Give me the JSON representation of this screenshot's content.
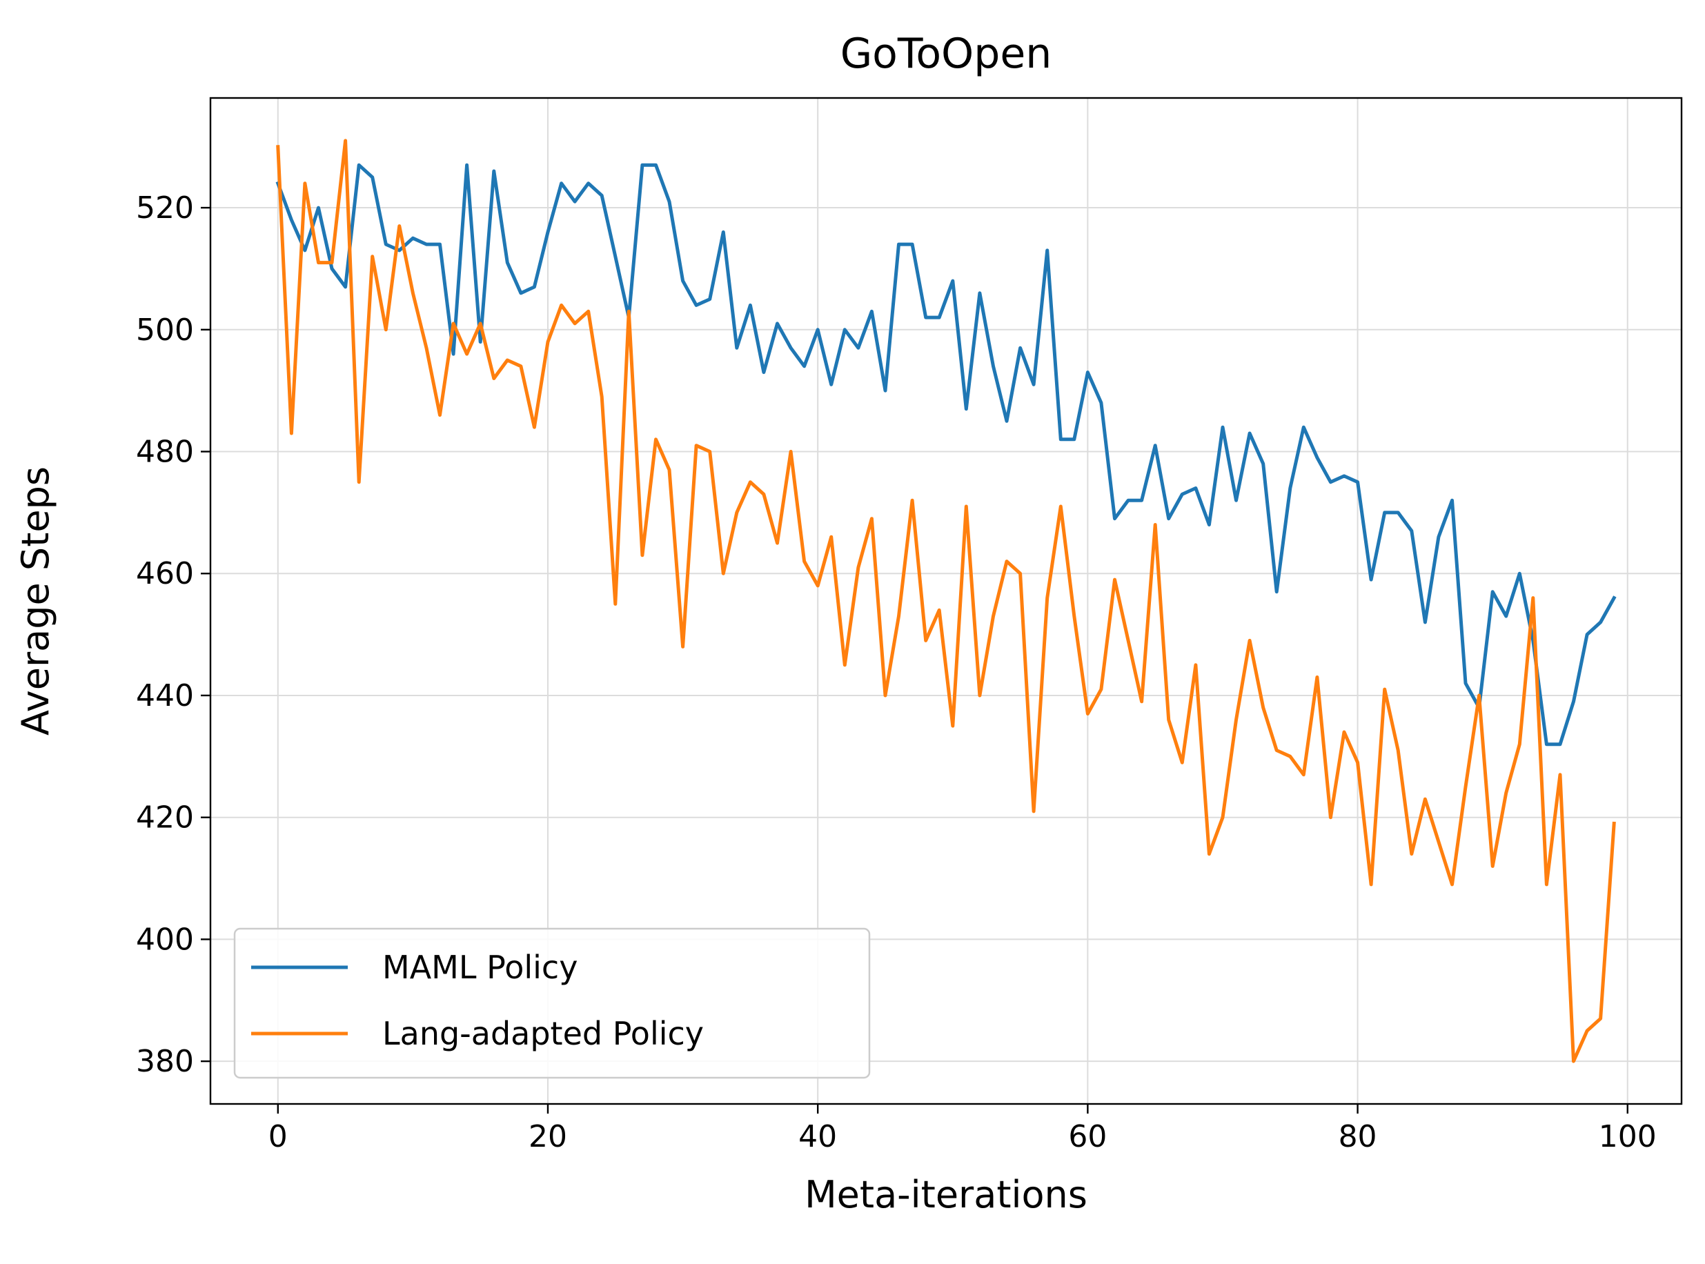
{
  "chart_data": {
    "type": "line",
    "title": "GoToOpen",
    "xlabel": "Meta-iterations",
    "ylabel": "Average Steps",
    "xlim": [
      -5,
      104
    ],
    "ylim": [
      373,
      538
    ],
    "xticks": [
      0,
      20,
      40,
      60,
      80,
      100
    ],
    "yticks": [
      380,
      400,
      420,
      440,
      460,
      480,
      500,
      520
    ],
    "grid": true,
    "legend_position": "lower-left",
    "x": [
      0,
      1,
      2,
      3,
      4,
      5,
      6,
      7,
      8,
      9,
      10,
      11,
      12,
      13,
      14,
      15,
      16,
      17,
      18,
      19,
      20,
      21,
      22,
      23,
      24,
      25,
      26,
      27,
      28,
      29,
      30,
      31,
      32,
      33,
      34,
      35,
      36,
      37,
      38,
      39,
      40,
      41,
      42,
      43,
      44,
      45,
      46,
      47,
      48,
      49,
      50,
      51,
      52,
      53,
      54,
      55,
      56,
      57,
      58,
      59,
      60,
      61,
      62,
      63,
      64,
      65,
      66,
      67,
      68,
      69,
      70,
      71,
      72,
      73,
      74,
      75,
      76,
      77,
      78,
      79,
      80,
      81,
      82,
      83,
      84,
      85,
      86,
      87,
      88,
      89,
      90,
      91,
      92,
      93,
      94,
      95,
      96,
      97,
      98,
      99
    ],
    "series": [
      {
        "name": "MAML Policy",
        "color": "#1f77b4",
        "values": [
          524,
          518,
          513,
          520,
          510,
          507,
          527,
          525,
          514,
          513,
          515,
          514,
          514,
          496,
          527,
          498,
          526,
          511,
          506,
          507,
          516,
          524,
          521,
          524,
          522,
          512,
          502,
          527,
          527,
          521,
          508,
          504,
          505,
          516,
          497,
          504,
          493,
          501,
          497,
          494,
          500,
          491,
          500,
          497,
          503,
          490,
          514,
          514,
          502,
          502,
          508,
          487,
          506,
          494,
          485,
          497,
          491,
          513,
          482,
          482,
          493,
          488,
          469,
          472,
          472,
          481,
          469,
          473,
          474,
          468,
          484,
          472,
          483,
          478,
          457,
          474,
          484,
          479,
          475,
          476,
          475,
          459,
          470,
          470,
          467,
          452,
          466,
          472,
          442,
          438,
          457,
          453,
          460,
          449,
          432,
          432,
          439,
          450,
          452,
          456
        ]
      },
      {
        "name": "Lang-adapted Policy",
        "color": "#ff7f0e",
        "values": [
          530,
          483,
          524,
          511,
          511,
          531,
          475,
          512,
          500,
          517,
          506,
          497,
          486,
          501,
          496,
          501,
          492,
          495,
          494,
          484,
          498,
          504,
          501,
          503,
          489,
          455,
          503,
          463,
          482,
          477,
          448,
          481,
          480,
          460,
          470,
          475,
          473,
          465,
          480,
          462,
          458,
          466,
          445,
          461,
          469,
          440,
          453,
          472,
          449,
          454,
          435,
          471,
          440,
          453,
          462,
          460,
          421,
          456,
          471,
          453,
          437,
          441,
          459,
          449,
          439,
          468,
          436,
          429,
          445,
          414,
          420,
          436,
          449,
          438,
          431,
          430,
          427,
          443,
          420,
          434,
          429,
          409,
          441,
          431,
          414,
          423,
          416,
          409,
          425,
          440,
          412,
          424,
          432,
          456,
          409,
          427,
          380,
          385,
          387,
          419
        ]
      }
    ]
  }
}
